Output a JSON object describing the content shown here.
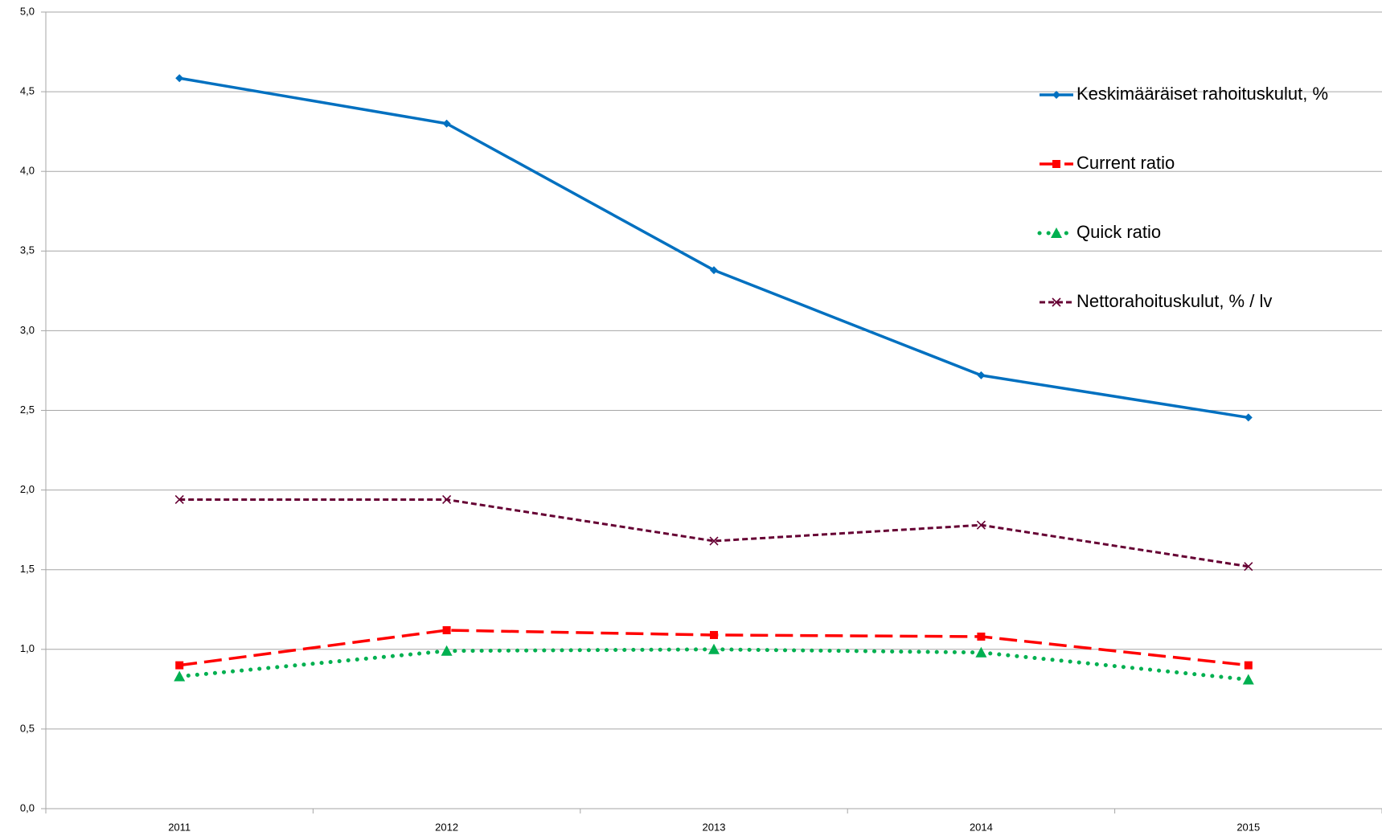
{
  "chart_data": {
    "type": "line",
    "categories": [
      "2011",
      "2012",
      "2013",
      "2014",
      "2015"
    ],
    "series": [
      {
        "name": "Keskimääräiset rahoituskulut, %",
        "color": "#0070c0",
        "values": [
          4.585,
          4.3,
          3.38,
          2.72,
          2.455
        ]
      },
      {
        "name": "Current ratio",
        "color": "#ff0000",
        "values": [
          0.9,
          1.12,
          1.09,
          1.08,
          0.9
        ]
      },
      {
        "name": "Quick ratio",
        "color": "#00b050",
        "values": [
          0.83,
          0.99,
          1.0,
          0.98,
          0.81
        ]
      },
      {
        "name": "Nettorahoituskulut, % / lv",
        "color": "#660033",
        "values": [
          1.94,
          1.94,
          1.68,
          1.78,
          1.52
        ]
      }
    ],
    "ylim": [
      0,
      5
    ],
    "yticks": [
      {
        "value": 0,
        "label": "0,0"
      },
      {
        "value": 0.5,
        "label": "0,5"
      },
      {
        "value": 1,
        "label": "1,0"
      },
      {
        "value": 1.5,
        "label": "1,5"
      },
      {
        "value": 2,
        "label": "2,0"
      },
      {
        "value": 2.5,
        "label": "2,5"
      },
      {
        "value": 3,
        "label": "3,0"
      },
      {
        "value": 3.5,
        "label": "3,5"
      },
      {
        "value": 4,
        "label": "4,0"
      },
      {
        "value": 4.5,
        "label": "4,5"
      },
      {
        "value": 5,
        "label": "5,0"
      }
    ],
    "grid": true,
    "legend": "top-right"
  }
}
